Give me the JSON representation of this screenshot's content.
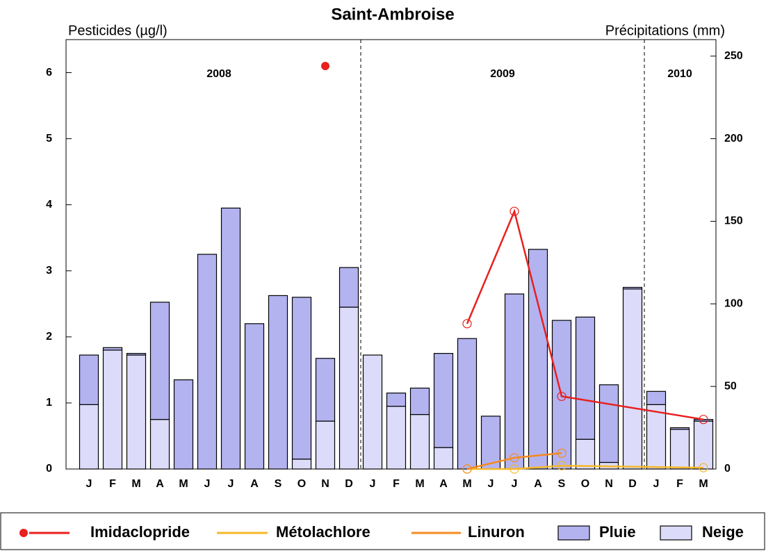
{
  "chart_data": {
    "type": "bar-line",
    "title": "Saint-Ambroise",
    "ylabel": "Pesticides (µg/l)",
    "y2label": "Précipitations (mm)",
    "categories": [
      "J",
      "F",
      "M",
      "A",
      "M",
      "J",
      "J",
      "A",
      "S",
      "O",
      "N",
      "D",
      "J",
      "F",
      "M",
      "A",
      "M",
      "J",
      "J",
      "A",
      "S",
      "O",
      "N",
      "D",
      "J",
      "F",
      "M"
    ],
    "x_groups": [
      {
        "label": "2008",
        "count": 12
      },
      {
        "label": "2009",
        "count": 12
      },
      {
        "label": "2010",
        "count": 3
      }
    ],
    "ylim": [
      0,
      6.5
    ],
    "yticks": [
      0,
      1,
      2,
      3,
      4,
      5,
      6
    ],
    "y2lim": [
      0,
      260
    ],
    "y2ticks": [
      0,
      50,
      100,
      150,
      200,
      250
    ],
    "series": [
      {
        "name": "Imidaclopride",
        "type": "line",
        "color": "#e8201e",
        "values": [
          null,
          null,
          null,
          null,
          null,
          null,
          null,
          null,
          null,
          null,
          null,
          null,
          null,
          null,
          null,
          null,
          2.2,
          null,
          3.9,
          null,
          1.1,
          null,
          null,
          null,
          null,
          null,
          0.75
        ]
      },
      {
        "name": "Métolachlore",
        "type": "line",
        "color": "#f5b828",
        "values": [
          null,
          null,
          null,
          null,
          null,
          null,
          null,
          null,
          null,
          null,
          null,
          null,
          null,
          null,
          null,
          null,
          0,
          null,
          0,
          null,
          0.05,
          null,
          null,
          null,
          null,
          null,
          0.02
        ]
      },
      {
        "name": "Linuron",
        "type": "line",
        "color": "#f58a1f",
        "values": [
          null,
          null,
          null,
          null,
          null,
          null,
          null,
          null,
          null,
          null,
          null,
          null,
          null,
          null,
          null,
          null,
          0,
          null,
          0.17,
          null,
          0.24,
          null,
          null,
          null,
          null,
          null,
          null
        ]
      },
      {
        "name": "Pluie",
        "type": "bar",
        "axis": "y2",
        "color": "#b3b3f0",
        "values": [
          30,
          1.5,
          1,
          71,
          54,
          130,
          158,
          88,
          105,
          98,
          38,
          24,
          0,
          8,
          16,
          57,
          79,
          32,
          106,
          133,
          90,
          74,
          47,
          1,
          8,
          1,
          1
        ]
      },
      {
        "name": "Neige",
        "type": "bar",
        "axis": "y2",
        "color": "#dcdcfa",
        "values": [
          39,
          72,
          69,
          30,
          0,
          0,
          0,
          0,
          0,
          6,
          29,
          98,
          69,
          38,
          33,
          13,
          0,
          0,
          0,
          0,
          0,
          18,
          4,
          109,
          39,
          24,
          29
        ]
      },
      {
        "type": "scatter",
        "color": "#e8201e",
        "values": [
          null,
          null,
          null,
          null,
          null,
          null,
          null,
          null,
          null,
          null,
          6.1,
          null,
          null,
          null,
          null,
          null,
          null,
          null,
          null,
          null,
          null,
          null,
          null,
          null,
          null,
          null,
          null
        ]
      }
    ]
  }
}
